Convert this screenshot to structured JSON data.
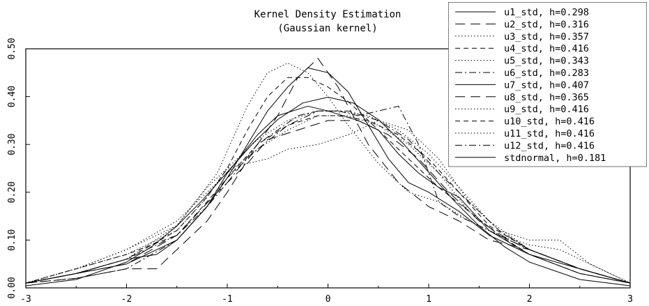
{
  "chart_data": {
    "type": "line",
    "title": "Kernel Density Estimation",
    "subtitle": "(Gaussian kernel)",
    "xlabel": "",
    "ylabel": "",
    "xlim": [
      -3,
      3
    ],
    "ylim": [
      0,
      0.5
    ],
    "x_ticks": [
      "-3",
      "-2",
      "-1",
      "0",
      "1",
      "2",
      "3"
    ],
    "y_ticks": [
      "0.00",
      "0.10",
      "0.20",
      "0.30",
      "0.40",
      "0.50"
    ],
    "grid": false,
    "legend_position": "top-right",
    "series": [
      {
        "name": "u1_std, h=0.298",
        "style": "solid",
        "x": [
          -3,
          -2.5,
          -2,
          -1.7,
          -1.5,
          -1.2,
          -1,
          -0.7,
          -0.5,
          -0.2,
          0,
          0.3,
          0.5,
          0.7,
          0.9,
          1.1,
          1.3,
          1.6,
          2,
          2.5,
          3
        ],
        "y": [
          0.01,
          0.03,
          0.06,
          0.07,
          0.1,
          0.17,
          0.24,
          0.32,
          0.36,
          0.38,
          0.37,
          0.35,
          0.33,
          0.28,
          0.24,
          0.21,
          0.19,
          0.12,
          0.07,
          0.04,
          0.01
        ]
      },
      {
        "name": "u2_std, h=0.316",
        "style": "longdash",
        "x": [
          -3,
          -2.5,
          -2,
          -1.7,
          -1.4,
          -1.2,
          -1,
          -0.7,
          -0.5,
          -0.3,
          -0.1,
          0.1,
          0.4,
          0.7,
          1,
          1.3,
          1.6,
          2,
          2.5,
          3
        ],
        "y": [
          0.01,
          0.02,
          0.04,
          0.04,
          0.1,
          0.14,
          0.2,
          0.3,
          0.36,
          0.44,
          0.48,
          0.42,
          0.3,
          0.22,
          0.17,
          0.14,
          0.1,
          0.08,
          0.04,
          0.01
        ]
      },
      {
        "name": "u3_std, h=0.357",
        "style": "dotted",
        "x": [
          -3,
          -2.5,
          -2,
          -1.5,
          -1.2,
          -1,
          -0.8,
          -0.6,
          -0.4,
          -0.1,
          0.2,
          0.5,
          0.8,
          1.1,
          1.4,
          1.7,
          2,
          2.3,
          2.6,
          3
        ],
        "y": [
          0.01,
          0.03,
          0.06,
          0.13,
          0.21,
          0.25,
          0.26,
          0.27,
          0.29,
          0.3,
          0.32,
          0.35,
          0.33,
          0.27,
          0.18,
          0.12,
          0.1,
          0.1,
          0.05,
          0.01
        ]
      },
      {
        "name": "u4_std, h=0.416",
        "style": "dash",
        "x": [
          -3,
          -2.5,
          -2,
          -1.5,
          -1.2,
          -1,
          -0.8,
          -0.6,
          -0.4,
          -0.2,
          0,
          0.2,
          0.5,
          0.8,
          1.1,
          1.4,
          1.7,
          2,
          2.5,
          3
        ],
        "y": [
          0.01,
          0.03,
          0.06,
          0.12,
          0.19,
          0.25,
          0.33,
          0.4,
          0.44,
          0.44,
          0.42,
          0.39,
          0.33,
          0.27,
          0.21,
          0.16,
          0.11,
          0.07,
          0.03,
          0.01
        ]
      },
      {
        "name": "u5_std, h=0.343",
        "style": "dotted",
        "x": [
          -3,
          -2.5,
          -2,
          -1.5,
          -1.1,
          -0.8,
          -0.6,
          -0.4,
          -0.2,
          0,
          0.2,
          0.5,
          0.8,
          1.1,
          1.4,
          1.7,
          2,
          2.5,
          3
        ],
        "y": [
          0.01,
          0.04,
          0.08,
          0.13,
          0.24,
          0.38,
          0.45,
          0.47,
          0.45,
          0.4,
          0.34,
          0.26,
          0.2,
          0.18,
          0.14,
          0.11,
          0.08,
          0.04,
          0.01
        ]
      },
      {
        "name": "u6_std, h=0.283",
        "style": "dashdot",
        "x": [
          -3,
          -2.5,
          -2,
          -1.5,
          -1.2,
          -1,
          -0.7,
          -0.5,
          -0.3,
          -0.1,
          0.1,
          0.3,
          0.5,
          0.7,
          0.9,
          1.1,
          1.3,
          1.6,
          2,
          2.5,
          3
        ],
        "y": [
          0.01,
          0.02,
          0.04,
          0.1,
          0.17,
          0.22,
          0.3,
          0.33,
          0.36,
          0.37,
          0.37,
          0.36,
          0.37,
          0.38,
          0.3,
          0.18,
          0.15,
          0.12,
          0.08,
          0.04,
          0.01
        ]
      },
      {
        "name": "u7_std, h=0.407",
        "style": "solid",
        "x": [
          -3,
          -2.5,
          -2,
          -1.5,
          -1.2,
          -1,
          -0.8,
          -0.6,
          -0.4,
          -0.2,
          0,
          0.2,
          0.4,
          0.6,
          0.8,
          1,
          1.3,
          1.6,
          2,
          2.5,
          3
        ],
        "y": [
          0.01,
          0.03,
          0.05,
          0.1,
          0.17,
          0.23,
          0.3,
          0.37,
          0.42,
          0.46,
          0.45,
          0.41,
          0.34,
          0.27,
          0.22,
          0.2,
          0.16,
          0.11,
          0.07,
          0.03,
          0.01
        ]
      },
      {
        "name": "u8_std, h=0.365",
        "style": "longdash",
        "x": [
          -3,
          -2.5,
          -2,
          -1.5,
          -1.1,
          -0.8,
          -0.6,
          -0.3,
          0,
          0.3,
          0.6,
          0.9,
          1.2,
          1.5,
          1.8,
          2,
          2.5,
          3
        ],
        "y": [
          0.01,
          0.03,
          0.05,
          0.11,
          0.2,
          0.26,
          0.31,
          0.33,
          0.35,
          0.35,
          0.32,
          0.27,
          0.2,
          0.14,
          0.1,
          0.08,
          0.04,
          0.01
        ]
      },
      {
        "name": "u9_std, h=0.416",
        "style": "dotted",
        "x": [
          -3,
          -2.5,
          -2,
          -1.5,
          -1.2,
          -1,
          -0.7,
          -0.4,
          -0.1,
          0.1,
          0.4,
          0.7,
          1,
          1.3,
          1.6,
          2,
          2.5,
          3
        ],
        "y": [
          0.01,
          0.04,
          0.07,
          0.12,
          0.19,
          0.25,
          0.31,
          0.35,
          0.37,
          0.37,
          0.36,
          0.33,
          0.28,
          0.21,
          0.14,
          0.08,
          0.04,
          0.01
        ]
      },
      {
        "name": "u10_std, h=0.416",
        "style": "dash",
        "x": [
          -3,
          -2.5,
          -2,
          -1.5,
          -1.2,
          -1,
          -0.7,
          -0.4,
          -0.1,
          0.1,
          0.4,
          0.7,
          1,
          1.3,
          1.6,
          2,
          2.5,
          3
        ],
        "y": [
          0.01,
          0.04,
          0.07,
          0.11,
          0.18,
          0.23,
          0.3,
          0.34,
          0.36,
          0.36,
          0.35,
          0.32,
          0.27,
          0.2,
          0.13,
          0.08,
          0.04,
          0.01
        ]
      },
      {
        "name": "u11_std, h=0.416",
        "style": "dotted",
        "x": [
          -3,
          -2.5,
          -2,
          -1.5,
          -1.2,
          -1,
          -0.7,
          -0.4,
          -0.1,
          0.2,
          0.5,
          0.8,
          1.1,
          1.4,
          1.7,
          2,
          2.3,
          2.6,
          3
        ],
        "y": [
          0.01,
          0.04,
          0.08,
          0.14,
          0.2,
          0.24,
          0.29,
          0.33,
          0.36,
          0.36,
          0.34,
          0.3,
          0.24,
          0.16,
          0.11,
          0.09,
          0.08,
          0.05,
          0.01
        ]
      },
      {
        "name": "u12_std, h=0.416",
        "style": "dashdot",
        "x": [
          -3,
          -2.5,
          -2,
          -1.5,
          -1.2,
          -1,
          -0.7,
          -0.4,
          -0.1,
          0.2,
          0.5,
          0.8,
          1.1,
          1.4,
          1.7,
          2,
          2.5,
          3
        ],
        "y": [
          0.01,
          0.03,
          0.06,
          0.11,
          0.17,
          0.23,
          0.29,
          0.34,
          0.37,
          0.37,
          0.35,
          0.31,
          0.24,
          0.18,
          0.12,
          0.08,
          0.04,
          0.01
        ]
      },
      {
        "name": "stdnormal, h=0.181",
        "style": "solid",
        "x": [
          -3,
          -2.5,
          -2,
          -1.75,
          -1.5,
          -1.25,
          -1,
          -0.75,
          -0.5,
          -0.25,
          0,
          0.25,
          0.5,
          0.75,
          1,
          1.25,
          1.5,
          1.75,
          2,
          2.5,
          3
        ],
        "y": [
          0.0044,
          0.0175,
          0.054,
          0.0863,
          0.1295,
          0.1826,
          0.242,
          0.3011,
          0.3521,
          0.3867,
          0.3989,
          0.3867,
          0.3521,
          0.3011,
          0.242,
          0.1826,
          0.1295,
          0.0863,
          0.054,
          0.0175,
          0.0044
        ]
      }
    ]
  }
}
